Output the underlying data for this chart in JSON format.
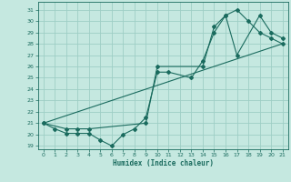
{
  "xlabel": "Humidex (Indice chaleur)",
  "xlim": [
    -0.5,
    21.5
  ],
  "ylim": [
    18.7,
    31.7
  ],
  "yticks": [
    19,
    20,
    21,
    22,
    23,
    24,
    25,
    26,
    27,
    28,
    29,
    30,
    31
  ],
  "xticks": [
    0,
    1,
    2,
    3,
    4,
    5,
    6,
    7,
    8,
    9,
    10,
    11,
    12,
    13,
    14,
    15,
    16,
    17,
    18,
    19,
    20,
    21
  ],
  "bg_color": "#c5e8e0",
  "grid_color": "#9ecec5",
  "line_color": "#1a6b5e",
  "line1_x": [
    0,
    1,
    2,
    3,
    4,
    5,
    6,
    7,
    8,
    9,
    10,
    11,
    13,
    14,
    15,
    16,
    17,
    18,
    19,
    20,
    21
  ],
  "line1_y": [
    21.0,
    20.5,
    20.1,
    20.1,
    20.1,
    19.5,
    19.0,
    20.0,
    20.5,
    21.5,
    25.5,
    25.5,
    25.0,
    26.5,
    29.0,
    30.5,
    31.0,
    30.0,
    29.0,
    28.5,
    28.0
  ],
  "line2_x": [
    0,
    2,
    3,
    4,
    9,
    10,
    14,
    15,
    16,
    17,
    19,
    20,
    21
  ],
  "line2_y": [
    21.0,
    20.5,
    20.5,
    20.5,
    21.0,
    26.0,
    26.0,
    29.5,
    30.5,
    27.0,
    30.5,
    29.0,
    28.5
  ],
  "line3_x": [
    0,
    21
  ],
  "line3_y": [
    21.0,
    28.0
  ]
}
